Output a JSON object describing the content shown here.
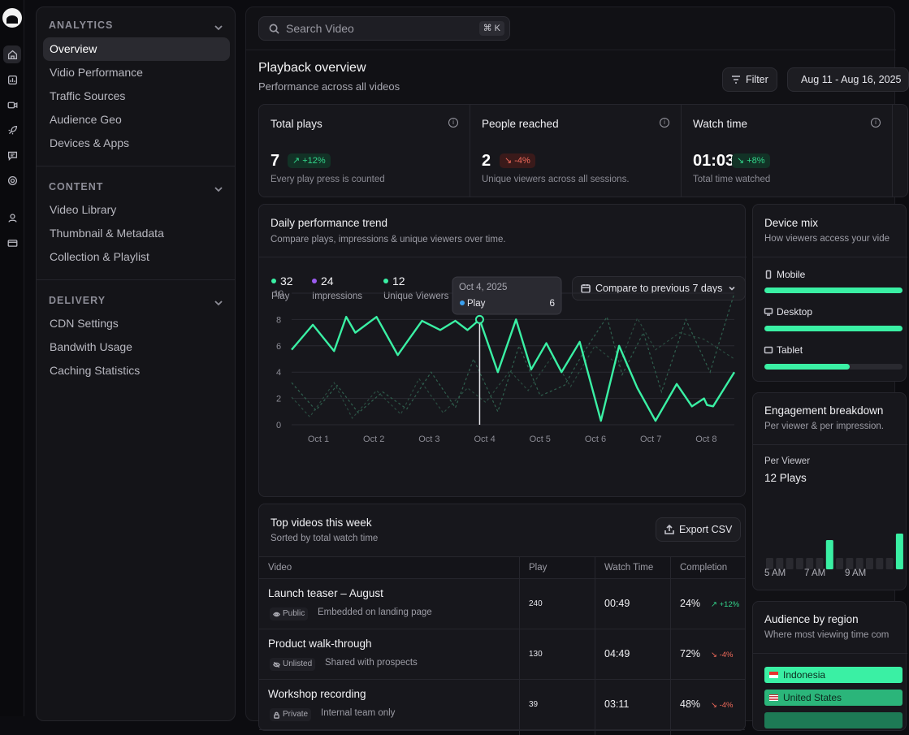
{
  "sidebar": {
    "sections": [
      {
        "title": "ANALYTICS",
        "items": [
          "Overview",
          "Vidio Performance",
          "Traffic Sources",
          "Audience Geo",
          "Devices & Apps"
        ]
      },
      {
        "title": "CONTENT",
        "items": [
          "Video Library",
          "Thumbnail & Metadata",
          "Collection & Playlist"
        ]
      },
      {
        "title": "DELIVERY",
        "items": [
          "CDN Settings",
          "Bandwith Usage",
          "Caching Statistics"
        ]
      }
    ],
    "active": "Overview"
  },
  "rail_icons": [
    "home-icon",
    "chart-icon",
    "video-icon",
    "rocket-icon",
    "message-icon",
    "settings-icon",
    "user-icon",
    "card-icon"
  ],
  "search": {
    "placeholder": "Search Video",
    "shortcut": "⌘ K"
  },
  "header": {
    "title": "Playback overview",
    "subtitle": "Performance across all videos",
    "filter_label": "Filter",
    "date_range": "Aug 11 - Aug 16, 2025"
  },
  "stats": [
    {
      "label": "Total plays",
      "value": "7",
      "change": "+12%",
      "trend": "up",
      "desc": "Every play press is counted"
    },
    {
      "label": "People reached",
      "value": "2",
      "change": "-4%",
      "trend": "down",
      "desc": "Unique viewers across all sessions."
    },
    {
      "label": "Watch time",
      "value": "01:03",
      "change": "+8%",
      "trend": "up",
      "desc": "Total time watched"
    }
  ],
  "trend_card": {
    "title": "Daily performance trend",
    "subtitle": "Compare plays, impressions & unique viewers over time.",
    "compare_label": "Compare to previous 7 days",
    "legend": [
      {
        "value": "32",
        "label": "Play",
        "color": "#3af0a4"
      },
      {
        "value": "24",
        "label": "Impressions",
        "color": "#9b5cf0"
      },
      {
        "value": "12",
        "label": "Unique Viewers",
        "color": "#3af0a4"
      }
    ],
    "tooltip": {
      "date": "Oct 4, 2025",
      "series": "Play",
      "value": "6"
    }
  },
  "chart_data": {
    "type": "line",
    "categories": [
      "Oct 1",
      "Oct 2",
      "Oct 3",
      "Oct 4",
      "Oct 5",
      "Oct 6",
      "Oct 7",
      "Oct 8"
    ],
    "ylim": [
      0,
      10
    ],
    "yticks": [
      0,
      2,
      4,
      6,
      8,
      10
    ],
    "series": [
      {
        "name": "Play",
        "color": "#3af0a4",
        "x": [
          0,
          0.35,
          0.7,
          0.9,
          1.05,
          1.4,
          1.75,
          2.15,
          2.45,
          2.7,
          2.9,
          3.1,
          3.4,
          3.7,
          3.95,
          4.2,
          4.45,
          4.75,
          5.1,
          5.4,
          5.7,
          6.0,
          6.35,
          6.6,
          6.8,
          6.85,
          6.95,
          7.3
        ],
        "y": [
          5.7,
          7.6,
          5.6,
          8.2,
          7.0,
          8.2,
          5.3,
          7.9,
          7.2,
          7.9,
          7.2,
          8.0,
          4.0,
          8.0,
          4.2,
          6.2,
          4.0,
          6.3,
          0.3,
          6.0,
          2.8,
          0.3,
          3.1,
          1.4,
          2.0,
          1.5,
          1.4,
          4.0
        ]
      },
      {
        "name": "Impressions",
        "color": "#2f5f4e",
        "x": [
          0,
          0.4,
          0.75,
          1.1,
          1.5,
          1.9,
          2.3,
          2.7,
          3.0,
          3.4,
          3.75,
          4.1,
          4.5,
          4.8,
          5.2,
          5.45,
          5.8,
          6.1,
          6.5,
          6.9,
          7.3
        ],
        "y": [
          3.2,
          1.1,
          3.0,
          0.9,
          2.5,
          1.2,
          4.0,
          1.3,
          5.0,
          1.0,
          6.0,
          2.2,
          3.0,
          5.4,
          8.2,
          3.8,
          7.0,
          2.5,
          8.0,
          4.0,
          10.0
        ]
      },
      {
        "name": "Unique Viewers",
        "color": "#2a4b40",
        "x": [
          0,
          0.3,
          0.7,
          1.0,
          1.4,
          1.8,
          2.1,
          2.5,
          2.9,
          3.2,
          3.6,
          3.9,
          4.3,
          4.6,
          5.0,
          5.4,
          5.7,
          6.0,
          6.4,
          6.8,
          7.3
        ],
        "y": [
          2.1,
          0.6,
          3.2,
          0.5,
          2.6,
          0.8,
          3.5,
          0.9,
          2.8,
          1.7,
          4.1,
          2.6,
          5.2,
          2.9,
          6.0,
          4.5,
          8.1,
          5.7,
          7.0,
          6.5,
          5.0
        ]
      }
    ],
    "highlight": {
      "category": "Oct 4",
      "series": "Play",
      "value": 6
    }
  },
  "videos_card": {
    "title": "Top videos this week",
    "subtitle": "Sorted by total watch time",
    "export_label": "Export CSV",
    "columns": [
      "Video",
      "Play",
      "Watch Time",
      "Completion"
    ],
    "rows": [
      {
        "title": "Launch teaser – August",
        "visibility": "Public",
        "note": "Embedded on landing page",
        "plays": "240",
        "watch": "00:49",
        "completion": "24%",
        "change": "+12%",
        "trend": "up"
      },
      {
        "title": "Product walk-through",
        "visibility": "Unlisted",
        "note": "Shared with prospects",
        "plays": "130",
        "watch": "04:49",
        "completion": "72%",
        "change": "-4%",
        "trend": "down"
      },
      {
        "title": "Workshop recording",
        "visibility": "Private",
        "note": "Internal team only",
        "plays": "39",
        "watch": "03:11",
        "completion": "48%",
        "change": "-4%",
        "trend": "down"
      }
    ]
  },
  "device_card": {
    "title": "Device mix",
    "subtitle": "How viewers access your vide",
    "devices": [
      {
        "name": "Mobile",
        "share": 1.0
      },
      {
        "name": "Desktop",
        "share": 1.0
      },
      {
        "name": "Tablet",
        "share": 0.62
      }
    ]
  },
  "engagement_card": {
    "title": "Engagement breakdown",
    "subtitle": "Per viewer & per impression.",
    "metric_label": "Per Viewer",
    "metric_value": "12 Plays",
    "hours": [
      "5 AM",
      "7 AM",
      "9 AM"
    ]
  },
  "region_card": {
    "title": "Audience by region",
    "subtitle": "Where most viewing time com",
    "regions": [
      "Indonesia",
      "United States"
    ]
  }
}
